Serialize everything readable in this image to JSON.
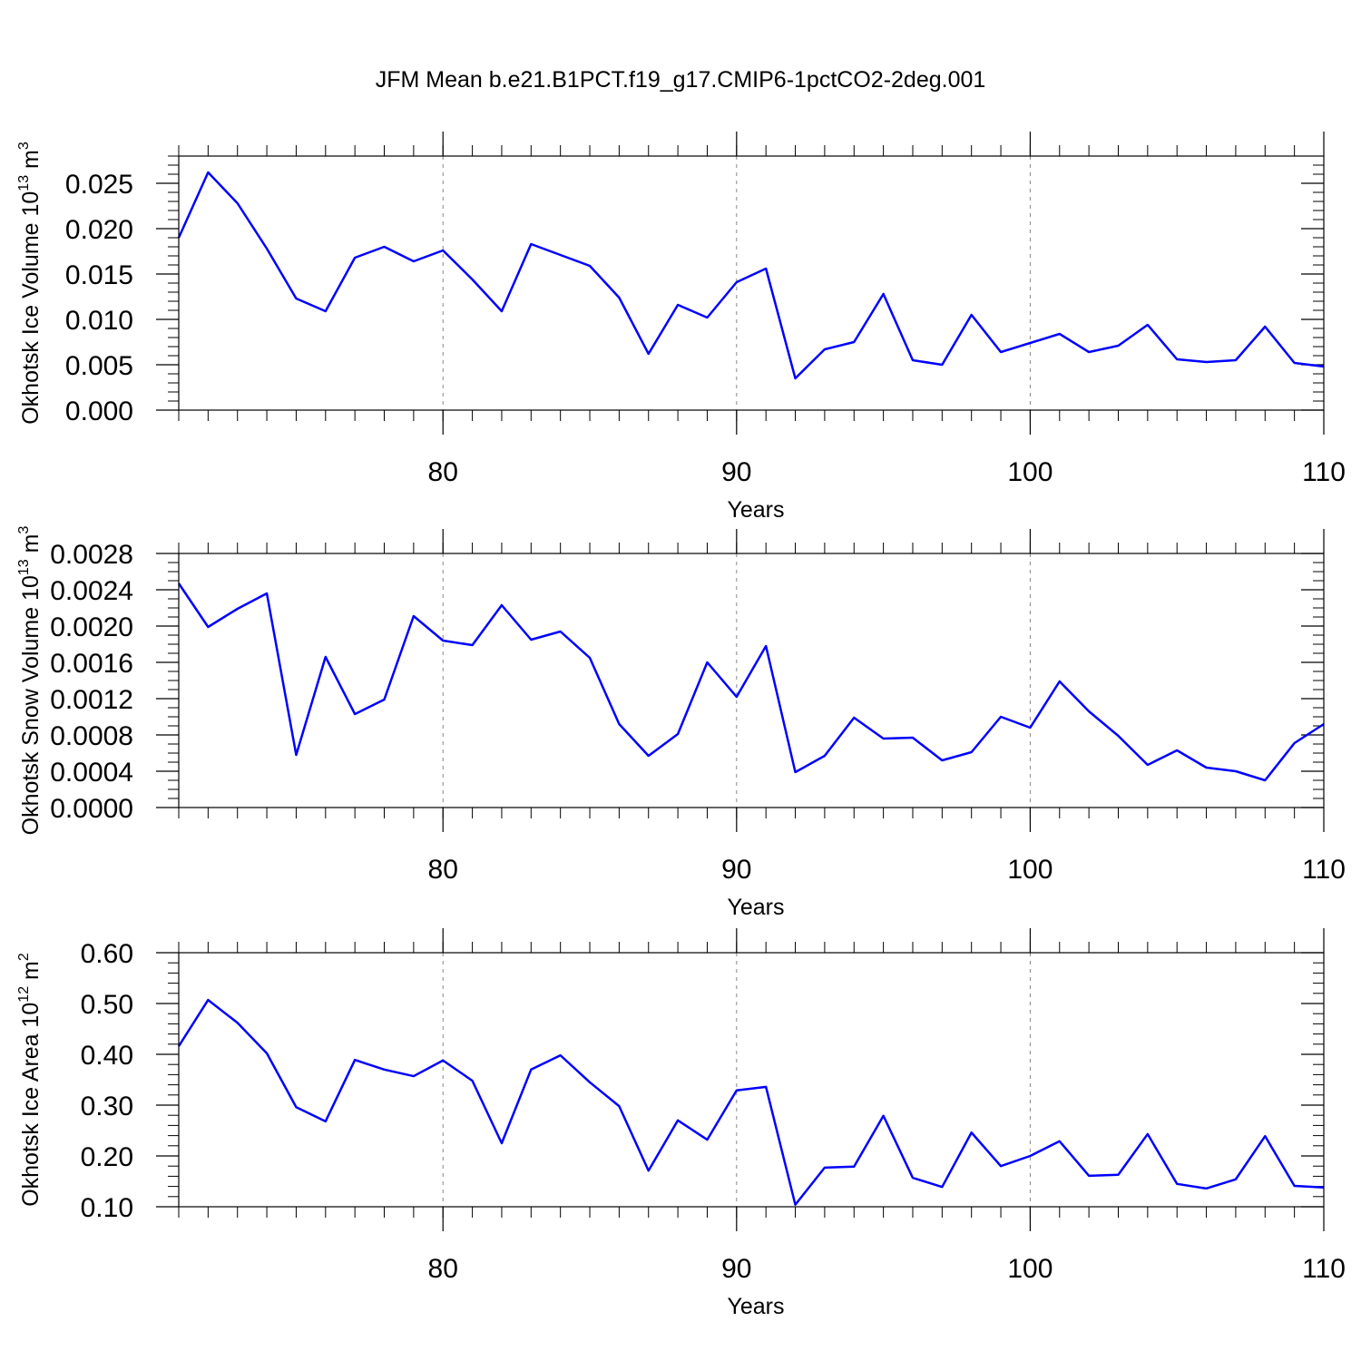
{
  "title": "JFM Mean b.e21.B1PCT.f19_g17.CMIP6-1pctCO2-2deg.001",
  "chart_data": [
    {
      "type": "line",
      "ylabel": {
        "text": "Okhotsk Ice Volume 10",
        "exp": "13",
        "unit": " m",
        "unit_exp": "3"
      },
      "xlabel": "Years",
      "x": [
        71,
        72,
        73,
        74,
        75,
        76,
        77,
        78,
        79,
        80,
        81,
        82,
        83,
        84,
        85,
        86,
        87,
        88,
        89,
        90,
        91,
        92,
        93,
        94,
        95,
        96,
        97,
        98,
        99,
        100,
        101,
        102,
        103,
        104,
        105,
        106,
        107,
        108,
        109,
        110
      ],
      "series": [
        {
          "color": "#0000ff",
          "values": [
            0.019,
            0.0262,
            0.0228,
            0.0178,
            0.0123,
            0.0109,
            0.0168,
            0.018,
            0.0164,
            0.0176,
            0.0144,
            0.0109,
            0.0183,
            0.0171,
            0.0159,
            0.0124,
            0.0062,
            0.0116,
            0.0102,
            0.0141,
            0.0156,
            0.0035,
            0.0067,
            0.0075,
            0.0128,
            0.0055,
            0.005,
            0.0105,
            0.0064,
            0.0074,
            0.0084,
            0.0064,
            0.0071,
            0.0094,
            0.0056,
            0.0053,
            0.0055,
            0.0092,
            0.0052,
            0.0048
          ]
        }
      ],
      "xlim": [
        71,
        110
      ],
      "xticks": [
        80,
        90,
        100,
        110
      ],
      "ylim": [
        0,
        0.028
      ],
      "yticks": [
        {
          "value": 0,
          "label": "0.000"
        },
        0.005,
        {
          "value": 0.01,
          "label": "0.010"
        },
        0.015,
        {
          "value": 0.02,
          "label": "0.020"
        },
        0.025
      ],
      "grid": "x-dashed"
    },
    {
      "type": "line",
      "ylabel": {
        "text": "Okhotsk Snow Volume 10",
        "exp": "13",
        "unit": " m",
        "unit_exp": "3"
      },
      "xlabel": "Years",
      "x": [
        71,
        72,
        73,
        74,
        75,
        76,
        77,
        78,
        79,
        80,
        81,
        82,
        83,
        84,
        85,
        86,
        87,
        88,
        89,
        90,
        91,
        92,
        93,
        94,
        95,
        96,
        97,
        98,
        99,
        100,
        101,
        102,
        103,
        104,
        105,
        106,
        107,
        108,
        109,
        110
      ],
      "series": [
        {
          "color": "#0000ff",
          "values": [
            0.00247,
            0.00199,
            0.00219,
            0.00236,
            0.00058,
            0.00166,
            0.00103,
            0.00119,
            0.00211,
            0.00184,
            0.00179,
            0.00223,
            0.00185,
            0.00194,
            0.00165,
            0.00092,
            0.00057,
            0.00081,
            0.0016,
            0.00122,
            0.00178,
            0.00039,
            0.00057,
            0.00099,
            0.00076,
            0.00077,
            0.00052,
            0.00061,
            0.001,
            0.00088,
            0.00139,
            0.00106,
            0.00079,
            0.00047,
            0.00063,
            0.00044,
            0.0004,
            0.0003,
            0.00071,
            0.00092
          ]
        }
      ],
      "xlim": [
        71,
        110
      ],
      "xticks": [
        80,
        90,
        100,
        110
      ],
      "ylim": [
        0,
        0.0028
      ],
      "yticks": [
        {
          "value": 0,
          "label": "0.0000"
        },
        0.0004,
        0.0008,
        0.0012,
        0.0016,
        {
          "value": 0.002,
          "label": "0.0020"
        },
        0.0024,
        0.0028
      ],
      "grid": "x-dashed"
    },
    {
      "type": "line",
      "ylabel": {
        "text": "Okhotsk Ice Area 10",
        "exp": "12",
        "unit": " m",
        "unit_exp": "2"
      },
      "xlabel": "Years",
      "x": [
        71,
        72,
        73,
        74,
        75,
        76,
        77,
        78,
        79,
        80,
        81,
        82,
        83,
        84,
        85,
        86,
        87,
        88,
        89,
        90,
        91,
        92,
        93,
        94,
        95,
        96,
        97,
        98,
        99,
        100,
        101,
        102,
        103,
        104,
        105,
        106,
        107,
        108,
        109,
        110
      ],
      "series": [
        {
          "color": "#0000ff",
          "values": [
            0.416,
            0.507,
            0.462,
            0.402,
            0.296,
            0.268,
            0.389,
            0.37,
            0.357,
            0.388,
            0.348,
            0.225,
            0.37,
            0.398,
            0.345,
            0.298,
            0.171,
            0.27,
            0.232,
            0.329,
            0.336,
            0.104,
            0.177,
            0.179,
            0.279,
            0.157,
            0.139,
            0.246,
            0.18,
            0.2,
            0.229,
            0.161,
            0.163,
            0.243,
            0.145,
            0.136,
            0.154,
            0.239,
            0.141,
            0.138
          ]
        }
      ],
      "xlim": [
        71,
        110
      ],
      "xticks": [
        80,
        90,
        100,
        110
      ],
      "ylim": [
        0.1,
        0.6
      ],
      "yticks": [
        {
          "value": 0.1,
          "label": "0.10"
        },
        {
          "value": 0.2,
          "label": "0.20"
        },
        {
          "value": 0.3,
          "label": "0.30"
        },
        {
          "value": 0.4,
          "label": "0.40"
        },
        {
          "value": 0.5,
          "label": "0.50"
        },
        {
          "value": 0.6,
          "label": "0.60"
        }
      ],
      "grid": "x-dashed"
    }
  ]
}
